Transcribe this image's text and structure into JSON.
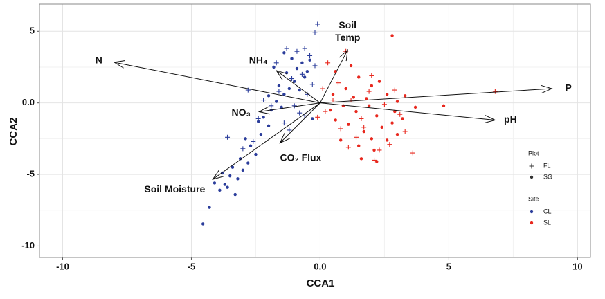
{
  "chart_data": {
    "type": "biplot",
    "x_label": "CCA1",
    "y_label": "CCA2",
    "xlim": [
      -10.9,
      10.5
    ],
    "ylim": [
      -10.8,
      6.9
    ],
    "xticks": [
      -10,
      -5,
      {
        "value": 0,
        "label": "0.0"
      },
      5,
      10
    ],
    "yticks": [
      -10,
      -5,
      {
        "value": 0,
        "label": "0.0"
      },
      5
    ],
    "grid": true,
    "legends": [
      {
        "title": "Plot",
        "items": [
          {
            "label": "FL",
            "marker": "plus"
          },
          {
            "label": "SG",
            "marker": "dot"
          }
        ],
        "color": "#333333"
      },
      {
        "title": "Site",
        "items": [
          {
            "label": "CL",
            "color": "#2b3d9b"
          },
          {
            "label": "SL",
            "color": "#e8281e"
          }
        ],
        "marker": "dot"
      }
    ],
    "series": [
      {
        "site": 0,
        "plot": 1,
        "x": [
          -4.55,
          -4.3,
          -3.9,
          -3.7,
          -3.6,
          -3.3,
          -3.5,
          -3.2,
          -3.0,
          -2.8,
          -3.1,
          -2.5,
          -2.7,
          -2.3,
          -2.0,
          -2.2,
          -1.9,
          -1.7,
          -1.5,
          -1.4,
          -1.2,
          -1.0,
          -1.3,
          -0.9,
          -0.7,
          -1.1,
          -0.6,
          -0.8,
          -0.5,
          -1.6,
          -1.8,
          -0.4,
          -1.4,
          -2.0,
          -2.4,
          -3.4,
          -3.8,
          -4.1,
          -2.9,
          -0.3
        ],
        "y": [
          -8.45,
          -7.3,
          -6.1,
          -5.7,
          -5.9,
          -6.4,
          -5.1,
          -5.3,
          -4.7,
          -4.2,
          -3.9,
          -3.6,
          -3.0,
          -2.2,
          -1.6,
          -1.0,
          -0.5,
          0.1,
          -0.3,
          0.6,
          1.0,
          1.5,
          2.1,
          2.4,
          2.8,
          3.1,
          1.8,
          0.9,
          2.2,
          1.2,
          2.5,
          3.0,
          3.5,
          0.5,
          -1.3,
          -4.5,
          -4.9,
          -5.6,
          -2.5,
          -1.1
        ]
      },
      {
        "site": 0,
        "plot": 0,
        "x": [
          -0.1,
          -0.2,
          -0.6,
          -0.9,
          -1.3,
          -0.4,
          -0.7,
          -1.1,
          -1.6,
          -1.9,
          -2.2,
          -0.8,
          -1.4,
          -2.6,
          -3.0,
          -3.6,
          -2.4,
          -0.5,
          -0.3,
          -1.0,
          -1.7,
          -0.2,
          -2.8,
          -1.2,
          -0.6
        ],
        "y": [
          5.5,
          4.9,
          3.8,
          3.6,
          3.8,
          3.3,
          2.0,
          1.7,
          0.8,
          -0.2,
          0.2,
          -0.7,
          -1.4,
          -2.7,
          -3.2,
          -2.4,
          -1.1,
          0.6,
          1.3,
          -0.2,
          2.8,
          2.6,
          0.9,
          -1.9,
          -0.9
        ]
      },
      {
        "site": 1,
        "plot": 1,
        "x": [
          2.8,
          1.2,
          0.6,
          1.5,
          2.0,
          2.3,
          1.0,
          0.5,
          1.8,
          2.6,
          3.0,
          3.7,
          4.8,
          0.9,
          1.4,
          2.2,
          2.8,
          3.2,
          1.1,
          1.7,
          0.6,
          2.0,
          2.6,
          1.5,
          1.6,
          2.2,
          0.4,
          1.9,
          2.4,
          3.0,
          1.3,
          0.8,
          2.9,
          3.3,
          2.1
        ],
        "y": [
          4.7,
          2.6,
          2.2,
          1.8,
          1.2,
          1.5,
          1.0,
          0.6,
          0.3,
          0.6,
          0.1,
          -0.3,
          -0.2,
          -0.2,
          -0.6,
          -0.9,
          -1.4,
          -1.1,
          -1.5,
          -2.0,
          -1.2,
          -2.5,
          -2.6,
          -3.0,
          -3.9,
          -4.1,
          -0.5,
          -0.2,
          -1.7,
          -2.2,
          0.4,
          -2.6,
          -0.6,
          0.5,
          -3.3
        ]
      },
      {
        "site": 1,
        "plot": 0,
        "x": [
          1.0,
          0.3,
          0.7,
          1.2,
          1.9,
          2.5,
          3.1,
          3.3,
          2.7,
          1.4,
          0.8,
          0.2,
          -0.1,
          1.6,
          2.3,
          2.1,
          3.6,
          6.8,
          0.5,
          1.1,
          2.0,
          0.1,
          2.9,
          1.7
        ],
        "y": [
          3.6,
          2.8,
          1.4,
          0.2,
          0.8,
          -0.1,
          -0.8,
          -2.0,
          -2.9,
          -2.4,
          -1.8,
          -0.6,
          -1.0,
          -1.1,
          -3.3,
          -4.0,
          -3.5,
          0.8,
          0.2,
          -3.1,
          1.9,
          1.0,
          0.9,
          -1.7
        ]
      }
    ],
    "arrows": [
      {
        "label": [
          "N"
        ],
        "x": -8.0,
        "y": 2.84
      },
      {
        "label": [
          "P"
        ],
        "x": 9.0,
        "y": 1.0
      },
      {
        "label": [
          "pH"
        ],
        "x": 6.8,
        "y": -1.2
      },
      {
        "label": [
          "Soil",
          "Temp"
        ],
        "x": 1.07,
        "y": 3.7
      },
      {
        "label": [
          "NH₄"
        ],
        "x": -1.7,
        "y": 2.26
      },
      {
        "label": [
          "NO₃"
        ],
        "x": -2.37,
        "y": -0.62
      },
      {
        "label": [
          "CO₂ Flux"
        ],
        "x": -1.56,
        "y": -2.8
      },
      {
        "label": [
          "Soil Moisture"
        ],
        "x": -4.17,
        "y": -5.34
      }
    ]
  }
}
